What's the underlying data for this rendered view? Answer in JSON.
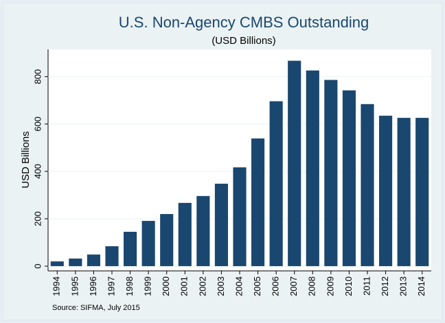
{
  "chart_data": {
    "type": "bar",
    "title": "U.S. Non-Agency CMBS Outstanding",
    "subtitle": "(USD Billions)",
    "y_label": "USD Billions",
    "note": "Source: SIFMA, July 2015",
    "categories": [
      "1994",
      "1995",
      "1996",
      "1997",
      "1998",
      "1999",
      "2000",
      "2001",
      "2002",
      "2003",
      "2004",
      "2005",
      "2006",
      "2007",
      "2008",
      "2009",
      "2010",
      "2011",
      "2012",
      "2013",
      "2014"
    ],
    "values": [
      20,
      32,
      49,
      84,
      145,
      191,
      220,
      267,
      296,
      348,
      417,
      539,
      696,
      867,
      826,
      786,
      742,
      684,
      635,
      626,
      626
    ],
    "color": "#1a476f",
    "ylim": [
      -20,
      915
    ],
    "yticks": [
      0,
      200,
      400,
      600,
      800
    ],
    "grid": true
  }
}
